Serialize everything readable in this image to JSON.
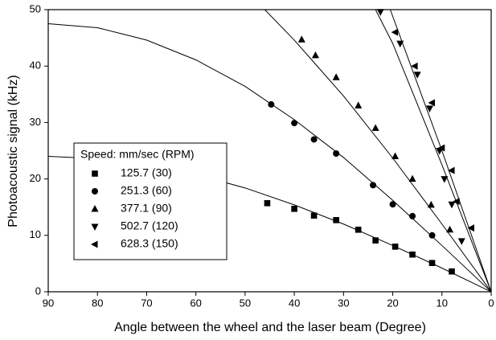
{
  "chart_data": {
    "type": "scatter",
    "x_label": "Angle between the wheel and the laser beam (Degree)",
    "y_label": "Photoacoustic signal (kHz)",
    "legend_title": "Speed: mm/sec (RPM)",
    "legend": "lower-left",
    "xlim": [
      90,
      0
    ],
    "ylim": [
      0,
      50
    ],
    "xticks": [
      90,
      80,
      70,
      60,
      50,
      40,
      30,
      20,
      10,
      0
    ],
    "yticks": [
      0,
      10,
      20,
      30,
      40,
      50
    ],
    "color": "#000000",
    "series": [
      {
        "name": "125.7 (30)",
        "marker": "square",
        "x": [
          45.5,
          40,
          36,
          31.5,
          27,
          23.5,
          19.5,
          16,
          12,
          8
        ],
        "values": [
          15.7,
          14.7,
          13.5,
          12.7,
          11,
          9.1,
          8,
          6.6,
          5.1,
          3.6
        ]
      },
      {
        "name": "251.3 (60)",
        "marker": "circle",
        "x": [
          44.7,
          40,
          36,
          31.5,
          24,
          20,
          16,
          12
        ],
        "values": [
          33.2,
          29.9,
          27,
          24.5,
          18.9,
          15.5,
          13.4,
          10
        ]
      },
      {
        "name": "377.1 (90)",
        "marker": "triangle-up",
        "x": [
          38.5,
          35.7,
          31.5,
          27,
          23.5,
          19.5,
          16,
          12.2,
          8.4
        ],
        "values": [
          44.7,
          41.9,
          38,
          33,
          29,
          24,
          20,
          15.4,
          11
        ]
      },
      {
        "name": "502.7 (120)",
        "marker": "triangle-down",
        "x": [
          22.5,
          18.5,
          15,
          12.5,
          10.5,
          9.5,
          8,
          6
        ],
        "values": [
          49.6,
          44,
          38.5,
          32.5,
          25,
          20,
          15.5,
          9
        ]
      },
      {
        "name": "628.3 (150)",
        "marker": "triangle-left",
        "x": [
          19.5,
          15.5,
          12,
          10,
          8,
          7,
          4
        ],
        "values": [
          46,
          40,
          33.5,
          25.5,
          21.5,
          16,
          11.3
        ]
      }
    ],
    "fit_lines": [
      {
        "x": [
          90,
          80,
          70,
          60,
          50,
          40,
          30,
          20,
          10,
          0
        ],
        "values": [
          24,
          23.6,
          22.5,
          20.8,
          18.4,
          15.4,
          12,
          8.2,
          4.2,
          0
        ]
      },
      {
        "x": [
          90,
          80,
          70,
          60,
          50,
          40,
          30,
          20,
          10,
          0
        ],
        "values": [
          47.5,
          46.8,
          44.6,
          41.1,
          36.4,
          30.5,
          23.8,
          16.2,
          8.2,
          0
        ]
      },
      {
        "x": [
          46,
          40,
          30,
          20,
          10,
          0
        ],
        "values": [
          50,
          44.6,
          34.7,
          23.7,
          12,
          0
        ]
      },
      {
        "x": [
          23.5,
          20,
          10,
          0
        ],
        "values": [
          50,
          44,
          22.5,
          0
        ]
      },
      {
        "x": [
          20.5,
          10,
          0
        ],
        "values": [
          50,
          25,
          0
        ]
      }
    ]
  }
}
